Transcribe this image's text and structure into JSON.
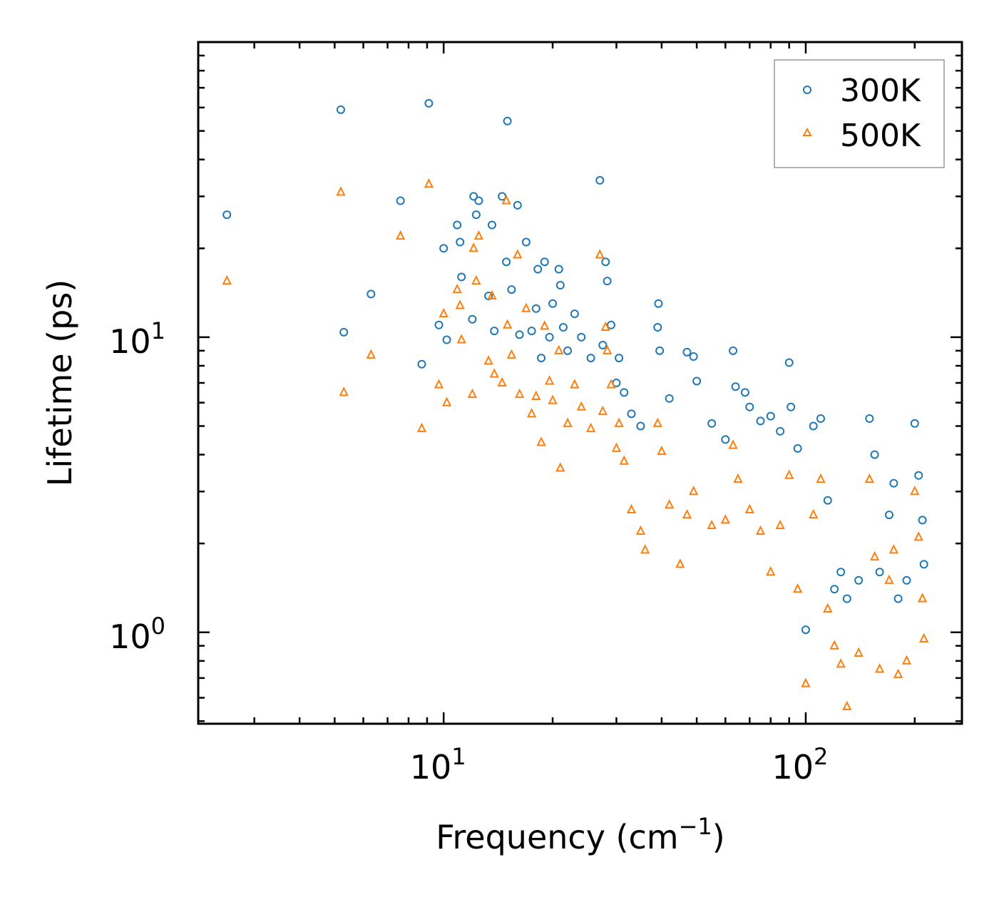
{
  "chart_data": {
    "type": "scatter",
    "title": "",
    "xlabel": "Frequency (cm",
    "xlabel_exp": "−1",
    "xlabel_close": ")",
    "ylabel": "Lifetime (ps)",
    "xscale": "log",
    "yscale": "log",
    "xlim": [
      2.1,
      270
    ],
    "ylim": [
      0.49,
      100
    ],
    "x_ticks": [
      {
        "base": "10",
        "exp": "1",
        "value": 10
      },
      {
        "base": "10",
        "exp": "2",
        "value": 100
      }
    ],
    "y_ticks": [
      {
        "base": "10",
        "exp": "0",
        "value": 1
      },
      {
        "base": "10",
        "exp": "1",
        "value": 10
      }
    ],
    "legend_position": "top-right",
    "series": [
      {
        "name": "300K",
        "marker": "circle",
        "color": "#1f77b4",
        "points": [
          [
            2.52,
            26.0
          ],
          [
            5.2,
            59.0
          ],
          [
            5.3,
            10.4
          ],
          [
            6.3,
            14.0
          ],
          [
            7.6,
            29.0
          ],
          [
            8.7,
            8.1
          ],
          [
            9.1,
            62.0
          ],
          [
            9.7,
            11.0
          ],
          [
            10.0,
            20.0
          ],
          [
            10.2,
            9.8
          ],
          [
            10.9,
            24.0
          ],
          [
            11.1,
            21.0
          ],
          [
            11.2,
            16.0
          ],
          [
            12.0,
            11.5
          ],
          [
            12.1,
            30.0
          ],
          [
            12.3,
            26.0
          ],
          [
            12.5,
            29.0
          ],
          [
            13.3,
            13.8
          ],
          [
            13.6,
            24.0
          ],
          [
            13.8,
            10.5
          ],
          [
            14.5,
            30.0
          ],
          [
            14.9,
            18.0
          ],
          [
            15.0,
            54.0
          ],
          [
            15.4,
            14.5
          ],
          [
            16.0,
            28.0
          ],
          [
            16.2,
            10.2
          ],
          [
            16.9,
            21.0
          ],
          [
            17.5,
            10.5
          ],
          [
            18.0,
            12.5
          ],
          [
            18.2,
            17.0
          ],
          [
            18.6,
            8.5
          ],
          [
            19.0,
            18.0
          ],
          [
            19.6,
            10.0
          ],
          [
            20.0,
            13.0
          ],
          [
            20.8,
            17.0
          ],
          [
            21.0,
            15.0
          ],
          [
            21.4,
            10.8
          ],
          [
            22.0,
            9.0
          ],
          [
            23.0,
            12.0
          ],
          [
            24.0,
            10.0
          ],
          [
            25.5,
            8.5
          ],
          [
            27.0,
            34.0
          ],
          [
            27.5,
            9.4
          ],
          [
            28.0,
            18.0
          ],
          [
            28.3,
            15.5
          ],
          [
            29.0,
            11.0
          ],
          [
            30.0,
            7.0
          ],
          [
            30.5,
            8.5
          ],
          [
            31.5,
            6.5
          ],
          [
            33.0,
            5.5
          ],
          [
            35.0,
            5.0
          ],
          [
            39.0,
            10.8
          ],
          [
            39.2,
            13.0
          ],
          [
            39.5,
            9.0
          ],
          [
            42.0,
            6.2
          ],
          [
            47.0,
            8.9
          ],
          [
            49.0,
            8.6
          ],
          [
            50.0,
            7.1
          ],
          [
            55.0,
            5.1
          ],
          [
            60.0,
            4.5
          ],
          [
            63.0,
            9.0
          ],
          [
            64.0,
            6.8
          ],
          [
            68.0,
            6.5
          ],
          [
            70.0,
            5.8
          ],
          [
            75.0,
            5.2
          ],
          [
            80.0,
            5.4
          ],
          [
            85.0,
            4.8
          ],
          [
            90.0,
            8.2
          ],
          [
            91.0,
            5.8
          ],
          [
            95.0,
            4.2
          ],
          [
            100.0,
            1.02
          ],
          [
            105.0,
            5.0
          ],
          [
            110.0,
            5.3
          ],
          [
            115.0,
            2.8
          ],
          [
            120.0,
            1.4
          ],
          [
            125.0,
            1.6
          ],
          [
            130.0,
            1.3
          ],
          [
            140.0,
            1.5
          ],
          [
            150.0,
            5.3
          ],
          [
            155.0,
            4.0
          ],
          [
            160.0,
            1.6
          ],
          [
            170.0,
            2.5
          ],
          [
            175.0,
            3.2
          ],
          [
            180.0,
            1.3
          ],
          [
            190.0,
            1.5
          ],
          [
            200.0,
            5.1
          ],
          [
            205.0,
            3.4
          ],
          [
            210.0,
            2.4
          ],
          [
            212.0,
            1.7
          ]
        ]
      },
      {
        "name": "500K",
        "marker": "triangle",
        "color": "#ff7f0e",
        "points": [
          [
            2.52,
            15.5
          ],
          [
            5.2,
            31.0
          ],
          [
            5.3,
            6.5
          ],
          [
            6.3,
            8.7
          ],
          [
            7.6,
            22.0
          ],
          [
            8.7,
            4.9
          ],
          [
            9.1,
            33.0
          ],
          [
            9.7,
            6.9
          ],
          [
            10.0,
            12.0
          ],
          [
            10.2,
            6.0
          ],
          [
            10.9,
            14.5
          ],
          [
            11.1,
            12.8
          ],
          [
            11.2,
            9.8
          ],
          [
            12.0,
            6.4
          ],
          [
            12.1,
            20.0
          ],
          [
            12.3,
            15.5
          ],
          [
            12.5,
            22.0
          ],
          [
            13.3,
            8.3
          ],
          [
            13.6,
            13.8
          ],
          [
            13.8,
            7.5
          ],
          [
            14.5,
            7.0
          ],
          [
            14.9,
            29.0
          ],
          [
            15.0,
            11.0
          ],
          [
            15.4,
            8.7
          ],
          [
            16.0,
            19.0
          ],
          [
            16.2,
            6.4
          ],
          [
            16.9,
            12.5
          ],
          [
            17.5,
            5.5
          ],
          [
            18.0,
            6.3
          ],
          [
            18.6,
            4.4
          ],
          [
            19.0,
            10.9
          ],
          [
            19.6,
            7.1
          ],
          [
            20.0,
            6.1
          ],
          [
            20.8,
            9.0
          ],
          [
            21.0,
            3.6
          ],
          [
            22.0,
            5.1
          ],
          [
            23.0,
            6.9
          ],
          [
            24.0,
            5.8
          ],
          [
            25.5,
            4.9
          ],
          [
            27.0,
            19.0
          ],
          [
            27.5,
            5.6
          ],
          [
            28.0,
            10.8
          ],
          [
            28.3,
            9.0
          ],
          [
            29.0,
            6.9
          ],
          [
            30.0,
            4.2
          ],
          [
            30.5,
            5.1
          ],
          [
            31.5,
            3.8
          ],
          [
            33.0,
            2.6
          ],
          [
            35.0,
            2.2
          ],
          [
            36.0,
            1.9
          ],
          [
            39.0,
            5.1
          ],
          [
            40.0,
            4.1
          ],
          [
            42.0,
            2.7
          ],
          [
            45.0,
            1.7
          ],
          [
            47.0,
            2.5
          ],
          [
            49.0,
            3.0
          ],
          [
            55.0,
            2.3
          ],
          [
            60.0,
            2.4
          ],
          [
            63.0,
            4.3
          ],
          [
            65.0,
            3.3
          ],
          [
            70.0,
            2.6
          ],
          [
            75.0,
            2.2
          ],
          [
            80.0,
            1.6
          ],
          [
            85.0,
            2.3
          ],
          [
            90.0,
            3.4
          ],
          [
            95.0,
            1.4
          ],
          [
            100.0,
            0.67
          ],
          [
            105.0,
            2.5
          ],
          [
            110.0,
            3.3
          ],
          [
            115.0,
            1.2
          ],
          [
            120.0,
            0.9
          ],
          [
            125.0,
            0.78
          ],
          [
            130.0,
            0.56
          ],
          [
            140.0,
            0.85
          ],
          [
            150.0,
            3.3
          ],
          [
            155.0,
            1.8
          ],
          [
            160.0,
            0.75
          ],
          [
            170.0,
            1.5
          ],
          [
            175.0,
            1.9
          ],
          [
            180.0,
            0.72
          ],
          [
            190.0,
            0.8
          ],
          [
            200.0,
            3.0
          ],
          [
            205.0,
            2.1
          ],
          [
            210.0,
            1.3
          ],
          [
            212.0,
            0.95
          ]
        ]
      }
    ]
  }
}
